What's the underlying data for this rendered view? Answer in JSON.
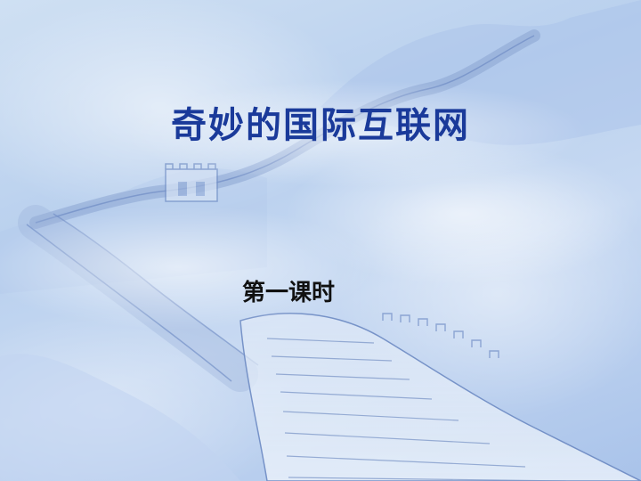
{
  "slide": {
    "title": "奇妙的国际互联网",
    "subtitle": "第一课时"
  },
  "colors": {
    "title": "#1a3a9a",
    "subtitle": "#111111",
    "background_light": "#cfe0f3",
    "background_mid": "#b9d0ee",
    "sketch_line": "#7d97c8"
  },
  "background": {
    "illustration": "great-wall-sketch"
  }
}
